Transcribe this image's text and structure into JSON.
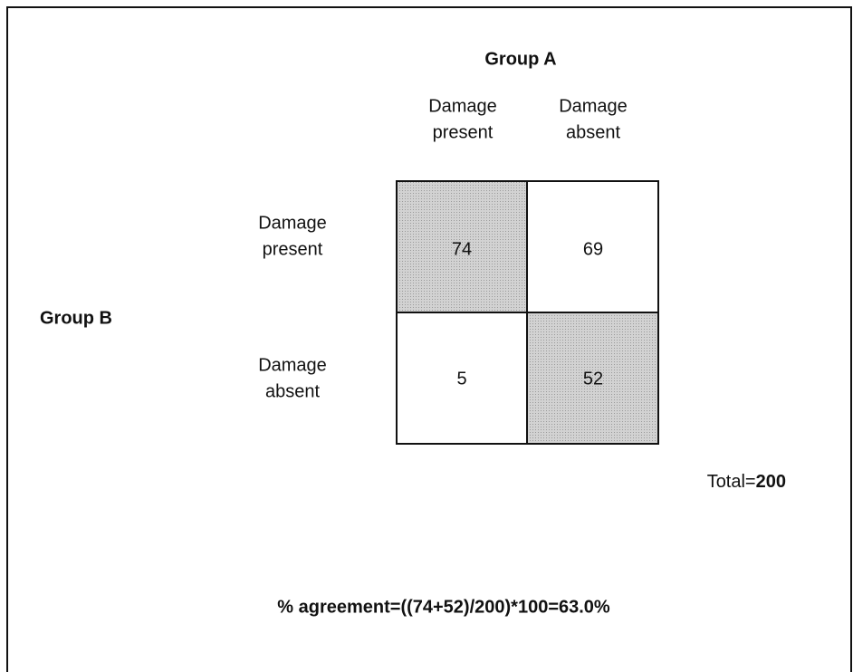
{
  "header": {
    "column_group": "Group A",
    "row_group": "Group B"
  },
  "table": {
    "column_labels": [
      [
        "Damage",
        "present"
      ],
      [
        "Damage",
        "absent"
      ]
    ],
    "row_labels": [
      [
        "Damage",
        "present"
      ],
      [
        "Damage",
        "absent"
      ]
    ],
    "rows": [
      [
        74,
        69
      ],
      [
        5,
        52
      ]
    ]
  },
  "total": {
    "label": "Total=",
    "value": 200
  },
  "formula": "% agreement=((74+52)/200)*100=63.0%"
}
